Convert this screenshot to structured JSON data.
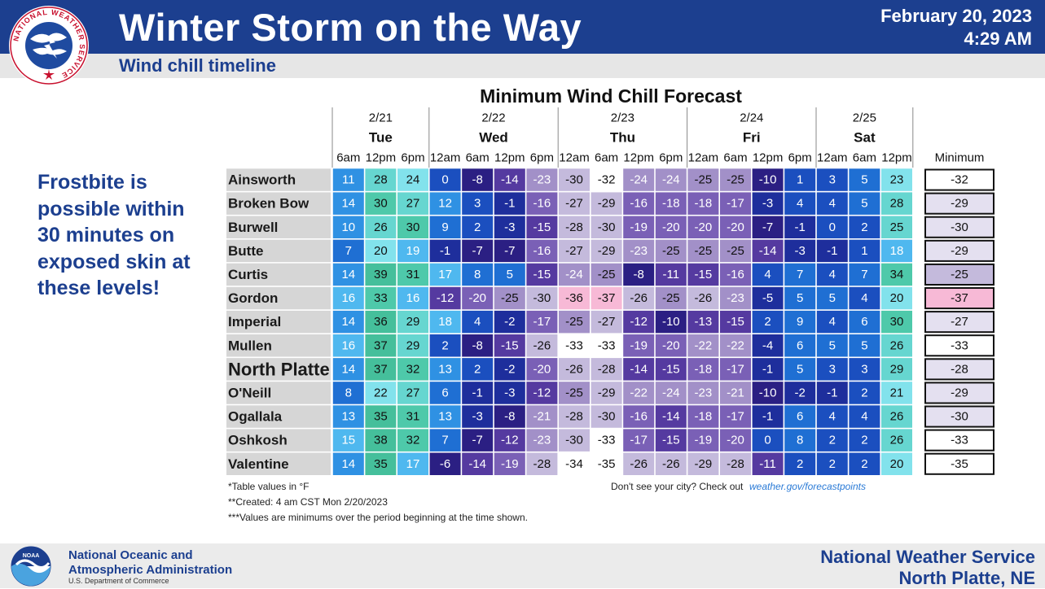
{
  "header": {
    "title": "Winter Storm on the Way",
    "date": "February 20, 2023",
    "time": "4:29 AM",
    "subtitle": "Wind chill timeline",
    "logo_icon": "nws-logo-icon",
    "logo_text": "NATIONAL WEATHER SERVICE"
  },
  "side_note": {
    "lines": [
      "Frostbite is",
      "possible within",
      "30 minutes on",
      "exposed skin at",
      "these levels!"
    ]
  },
  "chart_data": {
    "type": "table",
    "title": "Minimum Wind Chill Forecast",
    "days": [
      {
        "date": "2/21",
        "day": "Tue",
        "times": [
          "6am",
          "12pm",
          "6pm"
        ]
      },
      {
        "date": "2/22",
        "day": "Wed",
        "times": [
          "12am",
          "6am",
          "12pm",
          "6pm"
        ]
      },
      {
        "date": "2/23",
        "day": "Thu",
        "times": [
          "12am",
          "6am",
          "12pm",
          "6pm"
        ]
      },
      {
        "date": "2/24",
        "day": "Fri",
        "times": [
          "12am",
          "6am",
          "12pm",
          "6pm"
        ]
      },
      {
        "date": "2/25",
        "day": "Sat",
        "times": [
          "12am",
          "6am",
          "12pm"
        ]
      }
    ],
    "minimum_label": "Minimum",
    "rows": [
      {
        "city": "Ainsworth",
        "values": [
          11,
          28,
          24,
          0,
          -8,
          -14,
          -23,
          -30,
          -32,
          -24,
          -24,
          -25,
          -25,
          -10,
          1,
          3,
          5,
          23
        ],
        "minimum": -32
      },
      {
        "city": "Broken Bow",
        "values": [
          14,
          30,
          27,
          12,
          3,
          -1,
          -16,
          -27,
          -29,
          -16,
          -18,
          -18,
          -17,
          -3,
          4,
          4,
          5,
          28
        ],
        "minimum": -29
      },
      {
        "city": "Burwell",
        "values": [
          10,
          26,
          30,
          9,
          2,
          -3,
          -15,
          -28,
          -30,
          -19,
          -20,
          -20,
          -20,
          -7,
          -1,
          0,
          2,
          25
        ],
        "minimum": -30
      },
      {
        "city": "Butte",
        "values": [
          7,
          20,
          19,
          -1,
          -7,
          -7,
          -16,
          -27,
          -29,
          -23,
          -25,
          -25,
          -25,
          -14,
          -3,
          -1,
          1,
          18
        ],
        "minimum": -29
      },
      {
        "city": "Curtis",
        "values": [
          14,
          39,
          31,
          17,
          8,
          5,
          -15,
          -24,
          -25,
          -8,
          -11,
          -15,
          -16,
          4,
          7,
          4,
          7,
          34
        ],
        "minimum": -25
      },
      {
        "city": "Gordon",
        "values": [
          16,
          33,
          16,
          -12,
          -20,
          -25,
          -30,
          -36,
          -37,
          -26,
          -25,
          -26,
          -23,
          -5,
          5,
          5,
          4,
          20
        ],
        "minimum": -37
      },
      {
        "city": "Imperial",
        "values": [
          14,
          36,
          29,
          18,
          4,
          -2,
          -17,
          -25,
          -27,
          -12,
          -10,
          -13,
          -15,
          2,
          9,
          4,
          6,
          30
        ],
        "minimum": -27
      },
      {
        "city": "Mullen",
        "values": [
          16,
          37,
          29,
          2,
          -8,
          -15,
          -26,
          -33,
          -33,
          -19,
          -20,
          -22,
          -22,
          -4,
          6,
          5,
          5,
          26
        ],
        "minimum": -33
      },
      {
        "city": "North Platte",
        "values": [
          14,
          37,
          32,
          13,
          2,
          -2,
          -20,
          -26,
          -28,
          -14,
          -15,
          -18,
          -17,
          -1,
          5,
          3,
          3,
          29
        ],
        "minimum": -28
      },
      {
        "city": "O'Neill",
        "values": [
          8,
          22,
          27,
          6,
          -1,
          -3,
          -12,
          -25,
          -29,
          -22,
          -24,
          -23,
          -21,
          -10,
          -2,
          -1,
          2,
          21
        ],
        "minimum": -29
      },
      {
        "city": "Ogallala",
        "values": [
          13,
          35,
          31,
          13,
          -3,
          -8,
          -21,
          -28,
          -30,
          -16,
          -14,
          -18,
          -17,
          -1,
          6,
          4,
          4,
          26
        ],
        "minimum": -30
      },
      {
        "city": "Oshkosh",
        "values": [
          15,
          38,
          32,
          7,
          -7,
          -12,
          -23,
          -30,
          -33,
          -17,
          -15,
          -19,
          -20,
          0,
          8,
          2,
          2,
          26
        ],
        "minimum": -33
      },
      {
        "city": "Valentine",
        "values": [
          14,
          35,
          17,
          -6,
          -14,
          -19,
          -28,
          -34,
          -35,
          -26,
          -26,
          -29,
          -28,
          -11,
          2,
          2,
          2,
          20
        ],
        "minimum": -35
      }
    ],
    "notes": [
      "*Table values in °F",
      "**Created: 4 am CST Mon 2/20/2023",
      "***Values are minimums over the period beginning at the time shown."
    ],
    "link_prefix": "Don't see your city? Check out ",
    "link_text": "weather.gov/forecastpoints"
  },
  "footer": {
    "noaa_name_line1": "National Oceanic and",
    "noaa_name_line2": "Atmospheric Administration",
    "noaa_dept": "U.S. Department of Commerce",
    "noaa_logo_icon": "noaa-logo-icon",
    "noaa_logo_text": "NOAA",
    "office_line1": "National Weather Service",
    "office_line2": "North Platte, NE"
  }
}
